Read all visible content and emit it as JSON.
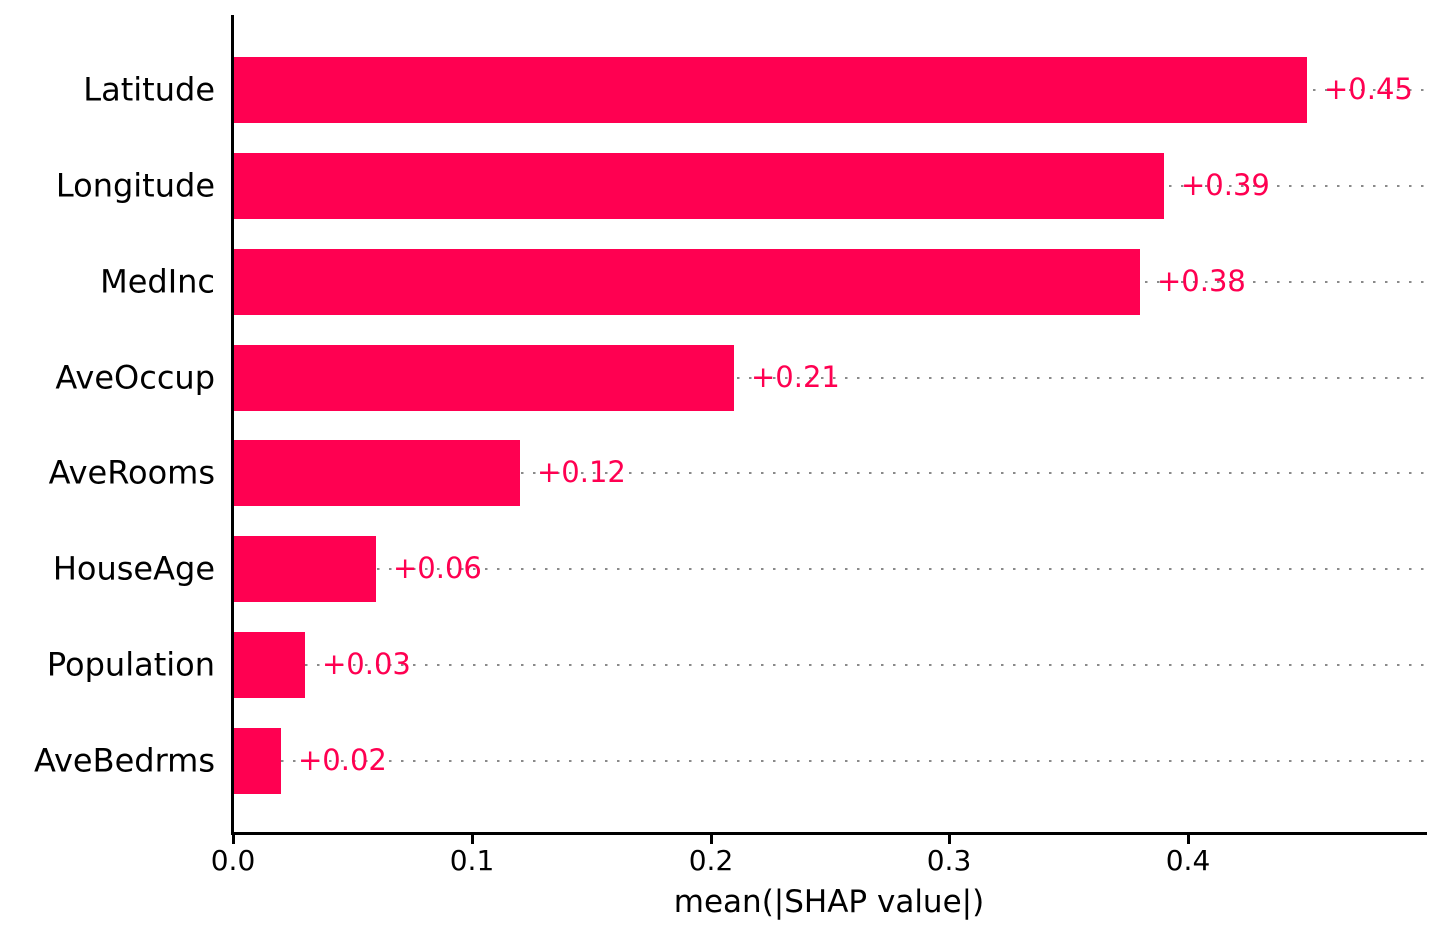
{
  "chart_data": {
    "type": "bar",
    "orientation": "horizontal",
    "title": "",
    "xlabel": "mean(|SHAP value|)",
    "ylabel": "",
    "categories": [
      "Latitude",
      "Longitude",
      "MedInc",
      "AveOccup",
      "AveRooms",
      "HouseAge",
      "Population",
      "AveBedrms"
    ],
    "values": [
      0.45,
      0.39,
      0.38,
      0.21,
      0.12,
      0.06,
      0.03,
      0.02
    ],
    "value_labels": [
      "+0.45",
      "+0.39",
      "+0.38",
      "+0.21",
      "+0.12",
      "+0.06",
      "+0.03",
      "+0.02"
    ],
    "xticks": [
      0.0,
      0.1,
      0.2,
      0.3,
      0.4
    ],
    "xtick_labels": [
      "0.0",
      "0.1",
      "0.2",
      "0.3",
      "0.4"
    ],
    "xlim": [
      0.0,
      0.5
    ],
    "bar_color": "#ff0051",
    "value_label_color": "#ff0051",
    "grid": "dotted horizontal lines at each bar row",
    "grid_color": "#8a8a8a",
    "legend": "none"
  }
}
